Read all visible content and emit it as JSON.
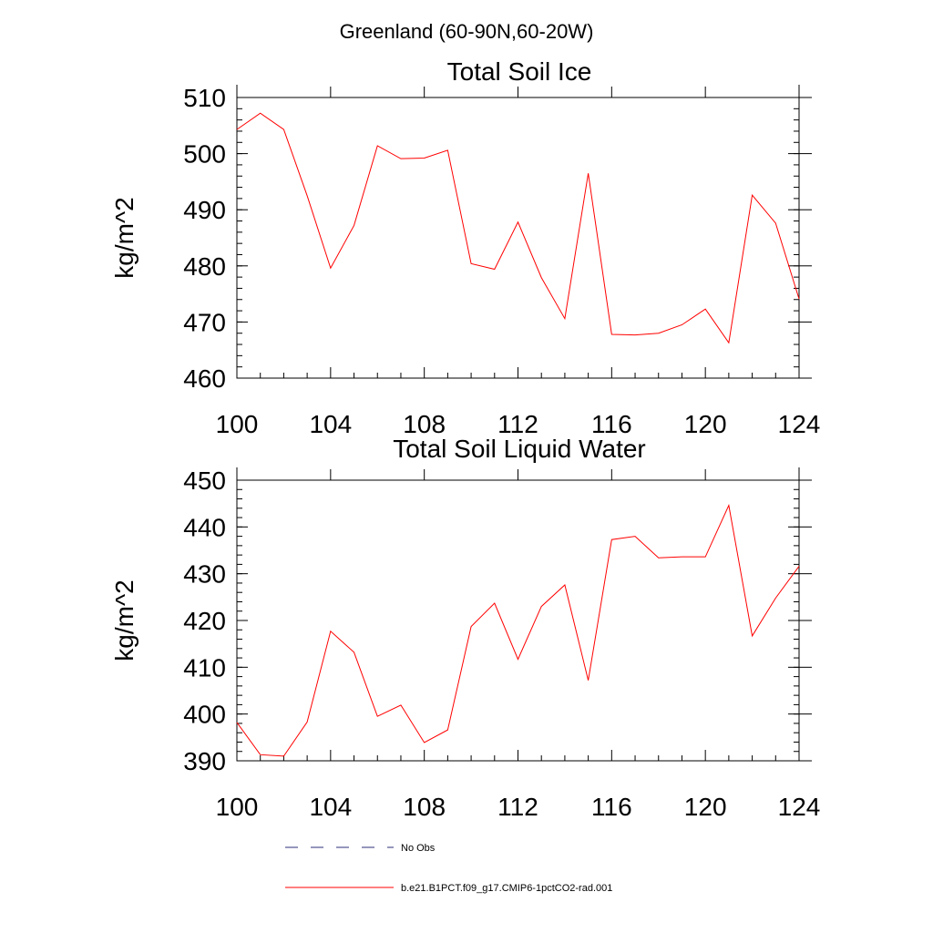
{
  "figure_title": "Greenland (60-90N,60-20W)",
  "colors": {
    "model": "#ff0000",
    "obs": "#2b2f7a",
    "axis": "#000000"
  },
  "legend": {
    "entries": [
      {
        "label": "No Obs",
        "style": "dashed",
        "color": "#2b2f7a"
      },
      {
        "label": "b.e21.B1PCT.f09_g17.CMIP6-1pctCO2-rad.001",
        "style": "solid",
        "color": "#ff0000"
      }
    ]
  },
  "chart_data": [
    {
      "type": "line",
      "title": "Total Soil Ice",
      "xlabel": "",
      "ylabel": "kg/m^2",
      "xlim": [
        100,
        124
      ],
      "ylim": [
        460,
        510
      ],
      "xticks": [
        100,
        104,
        108,
        112,
        116,
        120,
        124
      ],
      "yticks": [
        460,
        470,
        480,
        490,
        500,
        510
      ],
      "x": [
        100,
        101,
        102,
        103,
        104,
        105,
        106,
        107,
        108,
        109,
        110,
        111,
        112,
        113,
        114,
        115,
        116,
        117,
        118,
        119,
        120,
        121,
        122,
        123,
        124
      ],
      "series": [
        {
          "color": "#ff0000",
          "values": [
            504.3,
            507.2,
            504.3,
            492.5,
            479.6,
            487.2,
            501.4,
            499.1,
            499.2,
            500.6,
            480.4,
            479.4,
            487.8,
            477.9,
            470.6,
            496.5,
            467.8,
            467.7,
            468.0,
            469.5,
            472.3,
            466.3,
            492.6,
            487.6,
            474.1
          ]
        }
      ]
    },
    {
      "type": "line",
      "title": "Total Soil Liquid Water",
      "xlabel": "",
      "ylabel": "kg/m^2",
      "xlim": [
        100,
        124
      ],
      "ylim": [
        390,
        450
      ],
      "xticks": [
        100,
        104,
        108,
        112,
        116,
        120,
        124
      ],
      "yticks": [
        390,
        400,
        410,
        420,
        430,
        440,
        450
      ],
      "x": [
        100,
        101,
        102,
        103,
        104,
        105,
        106,
        107,
        108,
        109,
        110,
        111,
        112,
        113,
        114,
        115,
        116,
        117,
        118,
        119,
        120,
        121,
        122,
        123,
        124
      ],
      "series": [
        {
          "color": "#ff0000",
          "values": [
            398.2,
            391.3,
            391.0,
            398.3,
            417.7,
            413.2,
            399.5,
            401.9,
            393.9,
            396.6,
            418.7,
            423.7,
            411.7,
            423.0,
            427.6,
            407.2,
            437.3,
            438.0,
            433.4,
            433.6,
            433.6,
            444.6,
            416.7,
            424.8,
            431.6
          ]
        }
      ]
    }
  ]
}
